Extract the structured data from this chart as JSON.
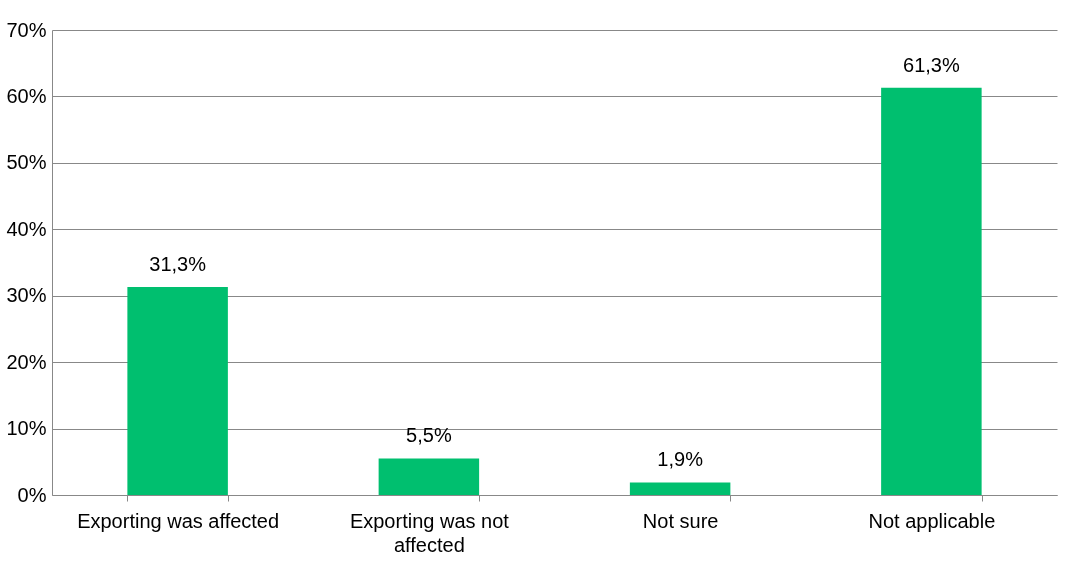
{
  "chart_data": {
    "type": "bar",
    "categories": [
      "Exporting was affected",
      "Exporting was not affected",
      "Not sure",
      "Not applicable"
    ],
    "values": [
      31.3,
      5.5,
      1.9,
      61.3
    ],
    "value_labels": [
      "31,3%",
      "5,5%",
      "1,9%",
      "61,3%"
    ],
    "color": "#00bf6f",
    "ylim": [
      0,
      70
    ],
    "yticks": [
      {
        "value": 0,
        "label": "0%"
      },
      {
        "value": 10,
        "label": "10%"
      },
      {
        "value": 20,
        "label": "20%"
      },
      {
        "value": 30,
        "label": "30%"
      },
      {
        "value": 40,
        "label": "40%"
      },
      {
        "value": 50,
        "label": "50%"
      },
      {
        "value": 60,
        "label": "60%"
      },
      {
        "value": 70,
        "label": "70%"
      }
    ],
    "grid": "y"
  }
}
